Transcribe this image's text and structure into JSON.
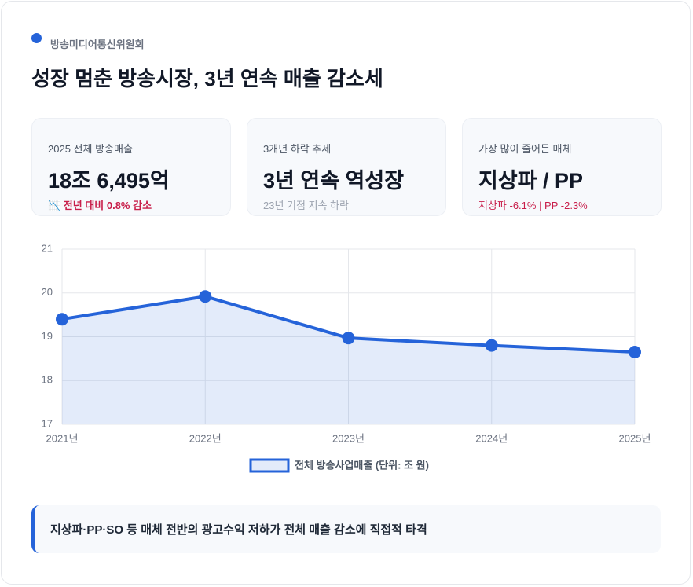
{
  "header": {
    "source": "방송미디어통신위원회",
    "title": "성장 멈춘 방송시장, 3년 연속 매출 감소세"
  },
  "cards": [
    {
      "label": "2025 전체 방송매출",
      "value": "18조 6,495억",
      "note": "📉 전년 대비 0.8% 감소"
    },
    {
      "label": "3개년 하락 추세",
      "value": "3년 연속 역성장",
      "note": "23년 기점 지속 하락"
    },
    {
      "label": "가장 많이 줄어든 매체",
      "value": "지상파 / PP",
      "note": "지상파 -6.1% | PP -2.3%"
    }
  ],
  "chart_data": {
    "type": "line",
    "categories": [
      "2021년",
      "2022년",
      "2023년",
      "2024년",
      "2025년"
    ],
    "series": [
      {
        "name": "전체 방송사업매출 (단위: 조 원)",
        "color": "#2563d9",
        "values": [
          19.4,
          19.92,
          18.97,
          18.8,
          18.65
        ]
      }
    ],
    "ylim": [
      17,
      21
    ],
    "yticks": [
      17,
      18,
      19,
      20,
      21
    ],
    "grid": true,
    "legend": "bottom"
  },
  "note": "지상파·PP·SO 등 매체 전반의 광고수익 저하가 전체 매출 감소에 직접적 타격"
}
